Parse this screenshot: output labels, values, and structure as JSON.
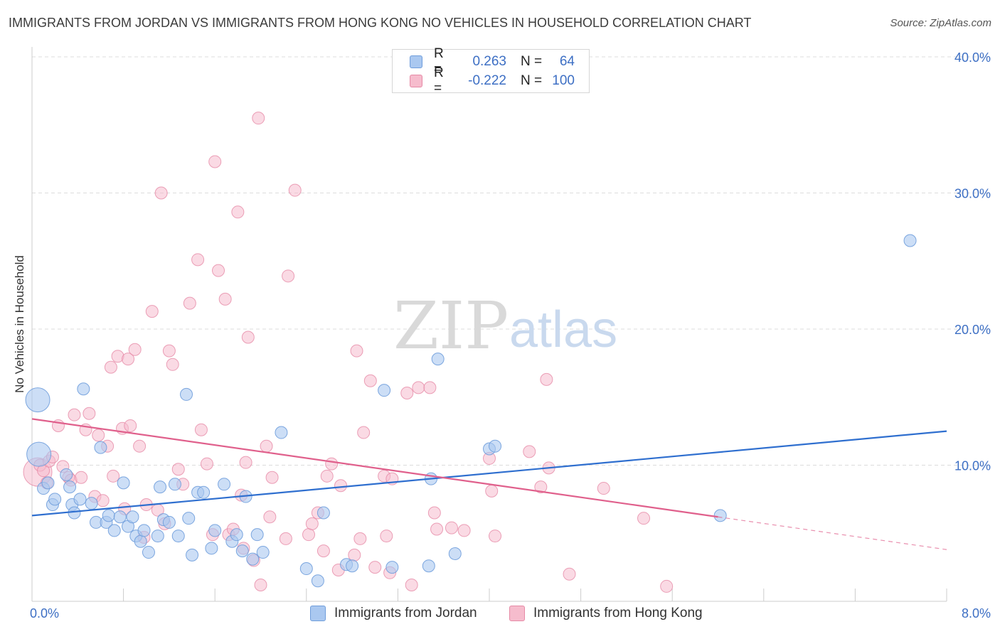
{
  "title": "IMMIGRANTS FROM JORDAN VS IMMIGRANTS FROM HONG KONG NO VEHICLES IN HOUSEHOLD CORRELATION CHART",
  "source": "Source: ZipAtlas.com",
  "watermark": {
    "zip": "ZIP",
    "atlas": "atlas"
  },
  "legend": {
    "rows": [
      {
        "r_label": "R =",
        "r_value": "0.263",
        "n_label": "N =",
        "n_value": "64"
      },
      {
        "r_label": "R =",
        "r_value": "-0.222",
        "n_label": "N =",
        "n_value": "100"
      }
    ]
  },
  "bottom_legend": {
    "jordan": "Immigrants from Jordan",
    "hongkong": "Immigrants from Hong Kong"
  },
  "colors": {
    "jordan_fill": "#aac8f0",
    "jordan_stroke": "#6f9ddb",
    "jordan_line": "#2f6fcf",
    "hongkong_fill": "#f6bccd",
    "hongkong_stroke": "#e68aa6",
    "hongkong_line": "#e0608c",
    "tick_label": "#3d6fc4"
  },
  "chart_data": {
    "type": "scatter",
    "title": "IMMIGRANTS FROM JORDAN VS IMMIGRANTS FROM HONG KONG NO VEHICLES IN HOUSEHOLD CORRELATION CHART",
    "xlabel": "",
    "ylabel": "No Vehicles in Household",
    "xlim": [
      0,
      8
    ],
    "ylim": [
      0,
      40
    ],
    "x_tick_labels": [
      "0.0%",
      "8.0%"
    ],
    "y_ticks": [
      10,
      20,
      30,
      40
    ],
    "y_tick_labels": [
      "10.0%",
      "20.0%",
      "30.0%",
      "40.0%"
    ],
    "grid": "horizontal dashed",
    "legend_position": "top-center",
    "series": [
      {
        "name": "Immigrants from Jordan",
        "R": 0.263,
        "N": 64,
        "trend": {
          "x": [
            0,
            8
          ],
          "y": [
            6.3,
            12.5
          ]
        },
        "points": [
          {
            "x": 0.05,
            "y": 14.8,
            "big": true
          },
          {
            "x": 0.06,
            "y": 10.8,
            "big": true
          },
          {
            "x": 0.1,
            "y": 8.3
          },
          {
            "x": 0.14,
            "y": 8.7
          },
          {
            "x": 0.18,
            "y": 7.1
          },
          {
            "x": 0.2,
            "y": 7.5
          },
          {
            "x": 0.3,
            "y": 9.3
          },
          {
            "x": 0.33,
            "y": 8.4
          },
          {
            "x": 0.35,
            "y": 7.1
          },
          {
            "x": 0.37,
            "y": 6.5
          },
          {
            "x": 0.42,
            "y": 7.5
          },
          {
            "x": 0.45,
            "y": 15.6
          },
          {
            "x": 0.52,
            "y": 7.2
          },
          {
            "x": 0.56,
            "y": 5.8
          },
          {
            "x": 0.6,
            "y": 11.3
          },
          {
            "x": 0.65,
            "y": 5.8
          },
          {
            "x": 0.67,
            "y": 6.3
          },
          {
            "x": 0.72,
            "y": 5.2
          },
          {
            "x": 0.77,
            "y": 6.2
          },
          {
            "x": 0.8,
            "y": 8.7
          },
          {
            "x": 0.84,
            "y": 5.5
          },
          {
            "x": 0.88,
            "y": 6.2
          },
          {
            "x": 0.91,
            "y": 4.8
          },
          {
            "x": 0.95,
            "y": 4.4
          },
          {
            "x": 0.98,
            "y": 5.2
          },
          {
            "x": 1.02,
            "y": 3.6
          },
          {
            "x": 1.1,
            "y": 4.8
          },
          {
            "x": 1.12,
            "y": 8.4
          },
          {
            "x": 1.15,
            "y": 6.0
          },
          {
            "x": 1.2,
            "y": 5.8
          },
          {
            "x": 1.25,
            "y": 8.6
          },
          {
            "x": 1.28,
            "y": 4.8
          },
          {
            "x": 1.35,
            "y": 15.2
          },
          {
            "x": 1.37,
            "y": 6.1
          },
          {
            "x": 1.4,
            "y": 3.4
          },
          {
            "x": 1.45,
            "y": 8.0
          },
          {
            "x": 1.5,
            "y": 8.0
          },
          {
            "x": 1.57,
            "y": 3.9
          },
          {
            "x": 1.6,
            "y": 5.2
          },
          {
            "x": 1.68,
            "y": 8.6
          },
          {
            "x": 1.75,
            "y": 4.4
          },
          {
            "x": 1.79,
            "y": 4.9
          },
          {
            "x": 1.84,
            "y": 3.7
          },
          {
            "x": 1.87,
            "y": 7.7
          },
          {
            "x": 1.93,
            "y": 3.1
          },
          {
            "x": 1.97,
            "y": 4.9
          },
          {
            "x": 2.02,
            "y": 3.6
          },
          {
            "x": 2.18,
            "y": 12.4
          },
          {
            "x": 2.4,
            "y": 2.4
          },
          {
            "x": 2.5,
            "y": 1.5
          },
          {
            "x": 2.55,
            "y": 6.5
          },
          {
            "x": 2.75,
            "y": 2.7
          },
          {
            "x": 2.8,
            "y": 2.6
          },
          {
            "x": 3.08,
            "y": 15.5
          },
          {
            "x": 3.15,
            "y": 2.5
          },
          {
            "x": 3.47,
            "y": 2.6
          },
          {
            "x": 3.49,
            "y": 9.0
          },
          {
            "x": 3.55,
            "y": 17.8
          },
          {
            "x": 3.7,
            "y": 3.5
          },
          {
            "x": 4.0,
            "y": 11.2
          },
          {
            "x": 4.05,
            "y": 11.4
          },
          {
            "x": 6.02,
            "y": 6.3
          },
          {
            "x": 7.68,
            "y": 26.5
          }
        ]
      },
      {
        "name": "Immigrants from Hong Kong",
        "R": -0.222,
        "N": 100,
        "trend": {
          "x": [
            0,
            6.0
          ],
          "y": [
            13.4,
            6.2
          ]
        },
        "trend_dashed": {
          "x": [
            6.0,
            8
          ],
          "y": [
            6.2,
            3.8
          ]
        },
        "points": [
          {
            "x": 0.05,
            "y": 9.5,
            "big": true
          },
          {
            "x": 0.07,
            "y": 10.0
          },
          {
            "x": 0.1,
            "y": 9.6
          },
          {
            "x": 0.13,
            "y": 8.7
          },
          {
            "x": 0.15,
            "y": 10.3
          },
          {
            "x": 0.18,
            "y": 10.6
          },
          {
            "x": 0.23,
            "y": 12.9
          },
          {
            "x": 0.27,
            "y": 9.9
          },
          {
            "x": 0.32,
            "y": 9.1
          },
          {
            "x": 0.34,
            "y": 8.9
          },
          {
            "x": 0.37,
            "y": 13.7
          },
          {
            "x": 0.43,
            "y": 9.1
          },
          {
            "x": 0.47,
            "y": 12.6
          },
          {
            "x": 0.5,
            "y": 13.8
          },
          {
            "x": 0.55,
            "y": 7.7
          },
          {
            "x": 0.58,
            "y": 12.2
          },
          {
            "x": 0.62,
            "y": 7.4
          },
          {
            "x": 0.66,
            "y": 11.4
          },
          {
            "x": 0.69,
            "y": 17.2
          },
          {
            "x": 0.71,
            "y": 9.2
          },
          {
            "x": 0.75,
            "y": 18.0
          },
          {
            "x": 0.79,
            "y": 12.7
          },
          {
            "x": 0.81,
            "y": 6.8
          },
          {
            "x": 0.84,
            "y": 17.8
          },
          {
            "x": 0.86,
            "y": 12.9
          },
          {
            "x": 0.9,
            "y": 18.5
          },
          {
            "x": 0.94,
            "y": 11.4
          },
          {
            "x": 0.98,
            "y": 4.7
          },
          {
            "x": 1.0,
            "y": 7.1
          },
          {
            "x": 1.05,
            "y": 21.3
          },
          {
            "x": 1.1,
            "y": 6.7
          },
          {
            "x": 1.13,
            "y": 30.0
          },
          {
            "x": 1.16,
            "y": 5.7
          },
          {
            "x": 1.2,
            "y": 18.4
          },
          {
            "x": 1.23,
            "y": 17.4
          },
          {
            "x": 1.28,
            "y": 9.7
          },
          {
            "x": 1.32,
            "y": 8.6
          },
          {
            "x": 1.38,
            "y": 21.9
          },
          {
            "x": 1.45,
            "y": 25.1
          },
          {
            "x": 1.48,
            "y": 12.6
          },
          {
            "x": 1.53,
            "y": 10.1
          },
          {
            "x": 1.58,
            "y": 4.9
          },
          {
            "x": 1.6,
            "y": 32.3
          },
          {
            "x": 1.63,
            "y": 24.3
          },
          {
            "x": 1.69,
            "y": 22.2
          },
          {
            "x": 1.72,
            "y": 4.9
          },
          {
            "x": 1.76,
            "y": 5.3
          },
          {
            "x": 1.8,
            "y": 28.6
          },
          {
            "x": 1.83,
            "y": 7.8
          },
          {
            "x": 1.85,
            "y": 3.9
          },
          {
            "x": 1.87,
            "y": 10.2
          },
          {
            "x": 1.89,
            "y": 19.4
          },
          {
            "x": 1.94,
            "y": 3.0
          },
          {
            "x": 1.98,
            "y": 35.5
          },
          {
            "x": 2.0,
            "y": 1.2
          },
          {
            "x": 2.05,
            "y": 11.4
          },
          {
            "x": 2.08,
            "y": 6.2
          },
          {
            "x": 2.1,
            "y": 9.1
          },
          {
            "x": 2.22,
            "y": 4.6
          },
          {
            "x": 2.24,
            "y": 23.9
          },
          {
            "x": 2.3,
            "y": 30.2
          },
          {
            "x": 2.42,
            "y": 4.9
          },
          {
            "x": 2.45,
            "y": 5.7
          },
          {
            "x": 2.5,
            "y": 6.5
          },
          {
            "x": 2.55,
            "y": 3.7
          },
          {
            "x": 2.58,
            "y": 9.2
          },
          {
            "x": 2.62,
            "y": 10.1
          },
          {
            "x": 2.68,
            "y": 2.3
          },
          {
            "x": 2.7,
            "y": 8.5
          },
          {
            "x": 2.82,
            "y": 3.4
          },
          {
            "x": 2.84,
            "y": 18.4
          },
          {
            "x": 2.87,
            "y": 4.6
          },
          {
            "x": 2.9,
            "y": 12.4
          },
          {
            "x": 2.96,
            "y": 16.2
          },
          {
            "x": 3.0,
            "y": 2.5
          },
          {
            "x": 3.08,
            "y": 9.2
          },
          {
            "x": 3.1,
            "y": 4.8
          },
          {
            "x": 3.13,
            "y": 2.1
          },
          {
            "x": 3.15,
            "y": 9.0
          },
          {
            "x": 3.28,
            "y": 15.3
          },
          {
            "x": 3.32,
            "y": 1.2
          },
          {
            "x": 3.38,
            "y": 15.7
          },
          {
            "x": 3.48,
            "y": 15.7
          },
          {
            "x": 3.52,
            "y": 6.5
          },
          {
            "x": 3.54,
            "y": 5.3
          },
          {
            "x": 3.67,
            "y": 5.4
          },
          {
            "x": 3.78,
            "y": 5.2
          },
          {
            "x": 4.0,
            "y": 10.5
          },
          {
            "x": 4.02,
            "y": 8.1
          },
          {
            "x": 4.05,
            "y": 4.8
          },
          {
            "x": 4.35,
            "y": 11.0
          },
          {
            "x": 4.45,
            "y": 8.4
          },
          {
            "x": 4.5,
            "y": 16.3
          },
          {
            "x": 4.52,
            "y": 9.8
          },
          {
            "x": 4.7,
            "y": 2.0
          },
          {
            "x": 5.0,
            "y": 8.3
          },
          {
            "x": 5.35,
            "y": 6.1
          },
          {
            "x": 5.55,
            "y": 1.1
          }
        ]
      }
    ]
  }
}
